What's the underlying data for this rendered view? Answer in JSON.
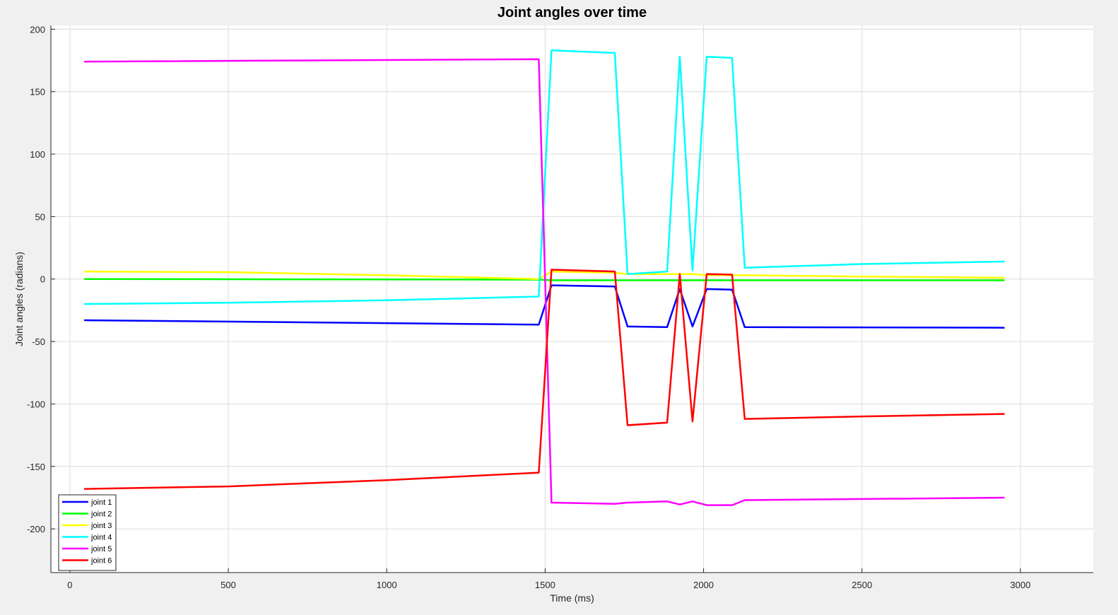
{
  "chart_data": {
    "type": "line",
    "title": "Joint angles over time",
    "xlabel": "Time (ms)",
    "ylabel": "Joint angles (radians)",
    "xlim": [
      -60,
      3230
    ],
    "ylim": [
      -235,
      203
    ],
    "xticks": [
      0,
      500,
      1000,
      1500,
      2000,
      2500,
      3000
    ],
    "yticks": [
      200,
      150,
      100,
      50,
      0,
      -50,
      -100,
      -150,
      -200
    ],
    "grid": true,
    "legend_position": "bottom-left",
    "series": [
      {
        "name": "joint 1",
        "color": "#0000ff",
        "x": [
          45,
          1480,
          1520,
          1720,
          1760,
          1885,
          1925,
          1965,
          2010,
          2090,
          2130,
          2950
        ],
        "y": [
          -33,
          -36.5,
          -5,
          -6,
          -38,
          -38.5,
          -8,
          -38,
          -8,
          -8.5,
          -38.5,
          -39
        ]
      },
      {
        "name": "joint 2",
        "color": "#00ff00",
        "x": [
          45,
          1480,
          1520,
          1720,
          1760,
          2950
        ],
        "y": [
          0,
          -0.5,
          -1,
          -1,
          -1,
          -1
        ]
      },
      {
        "name": "joint 3",
        "color": "#ffff00",
        "x": [
          45,
          500,
          1000,
          1480,
          1520,
          1720,
          1760,
          1885,
          1925,
          1965,
          2010,
          2090,
          2130,
          2500,
          2950
        ],
        "y": [
          6,
          5.5,
          3,
          0,
          6,
          5,
          4,
          4,
          4,
          4,
          3,
          3,
          3,
          2,
          1
        ]
      },
      {
        "name": "joint 4",
        "color": "#00ffff",
        "x": [
          45,
          500,
          1000,
          1480,
          1520,
          1720,
          1760,
          1885,
          1925,
          1965,
          2010,
          2090,
          2130,
          2500,
          2950
        ],
        "y": [
          -20,
          -19,
          -17,
          -14,
          183,
          181,
          4,
          6,
          178,
          7,
          178,
          177,
          9,
          12,
          14
        ]
      },
      {
        "name": "joint 5",
        "color": "#ff00ff",
        "x": [
          45,
          1480,
          1520,
          1720,
          1760,
          1885,
          1925,
          1965,
          2010,
          2090,
          2130,
          2950
        ],
        "y": [
          174,
          176,
          -179,
          -180,
          -179,
          -178,
          -180.5,
          -178,
          -181,
          -181,
          -177,
          -175
        ]
      },
      {
        "name": "joint 6",
        "color": "#ff0000",
        "x": [
          45,
          500,
          1000,
          1480,
          1520,
          1720,
          1760,
          1885,
          1925,
          1965,
          2010,
          2090,
          2130,
          2500,
          2950
        ],
        "y": [
          -168,
          -166,
          -161,
          -155,
          7.5,
          6,
          -117,
          -115,
          4,
          -114,
          4,
          3.5,
          -112,
          -110,
          -108
        ]
      }
    ]
  }
}
